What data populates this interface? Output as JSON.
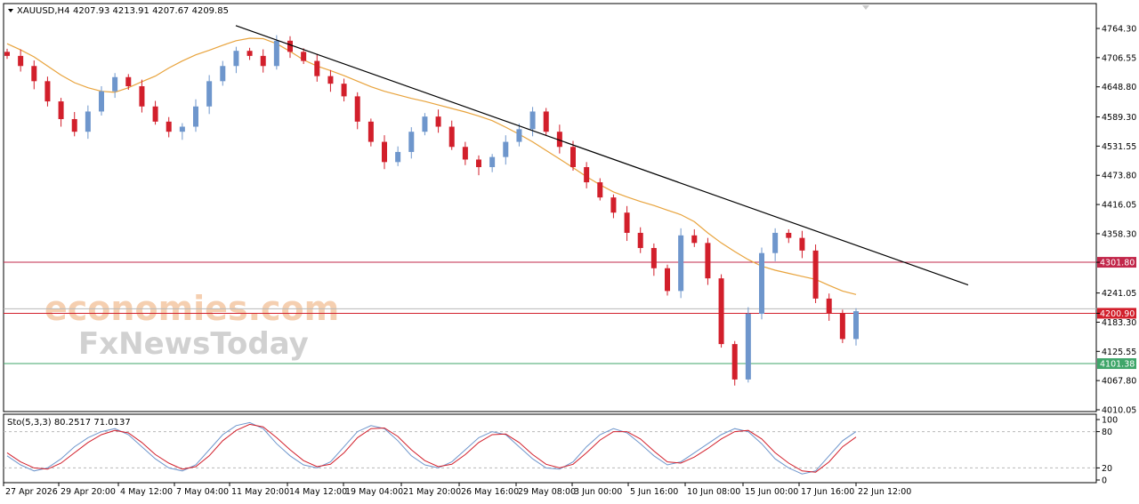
{
  "header": {
    "symbol_label": "XAUUSD,H4",
    "ohlc": "4207.93 4213.91 4207.67 4209.85",
    "dropdown_icon": "triangle-down-icon"
  },
  "watermark": {
    "line1": "economies.com",
    "line2": "FxNewsToday"
  },
  "chart_data": [
    {
      "type": "candlestick",
      "symbol": "XAUUSD",
      "timeframe": "H4",
      "y_ticks": [
        "4764.30",
        "4706.55",
        "4648.80",
        "4589.30",
        "4531.55",
        "4473.80",
        "4416.05",
        "4358.30",
        "4301.80",
        "4241.05",
        "4200.90",
        "4183.30",
        "4125.55",
        "4067.80",
        "4010.05"
      ],
      "ylim": [
        4010.05,
        4764.3
      ],
      "x_tick_labels": [
        "27 Apr 2026",
        "29 Apr 20:00",
        "4 May 12:00",
        "7 May 04:00",
        "11 May 20:00",
        "14 May 12:00",
        "19 May 04:00",
        "21 May 20:00",
        "26 May 16:00",
        "29 May 08:00",
        "3 Jun 00:00",
        "5 Jun 16:00",
        "10 Jun 08:00",
        "15 Jun 00:00",
        "17 Jun 16:00",
        "22 Jun 12:00"
      ],
      "colors": {
        "bull": "#6e96cc",
        "bear": "#d21f2b",
        "ma": "#e8a33c",
        "trendline": "#000000"
      },
      "horizontal_levels": [
        {
          "value": 4301.8,
          "label": "4301.80",
          "color": "#c2274a"
        },
        {
          "value": 4200.9,
          "label": "4200.90",
          "color": "#d21f2b"
        },
        {
          "value": 4101.38,
          "label": "4101.38",
          "color": "#3fa66a"
        }
      ],
      "trendline": {
        "start": 4770,
        "end": 4257
      },
      "moving_average_series": [
        4734,
        4722,
        4708,
        4690,
        4672,
        4657,
        4647,
        4640,
        4638,
        4647,
        4659,
        4670,
        4686,
        4700,
        4712,
        4721,
        4731,
        4740,
        4745,
        4744,
        4734,
        4719,
        4702,
        4690,
        4681,
        4671,
        4660,
        4649,
        4640,
        4633,
        4626,
        4620,
        4613,
        4606,
        4599,
        4591,
        4582,
        4569,
        4555,
        4540,
        4523,
        4506,
        4489,
        4471,
        4455,
        4441,
        4431,
        4422,
        4414,
        4405,
        4396,
        4382,
        4360,
        4340,
        4323,
        4307,
        4294,
        4286,
        4280,
        4274,
        4268,
        4256,
        4245,
        4238
      ],
      "close_series": [
        4710,
        4690,
        4660,
        4620,
        4585,
        4560,
        4600,
        4640,
        4668,
        4650,
        4610,
        4580,
        4560,
        4570,
        4610,
        4660,
        4690,
        4720,
        4710,
        4690,
        4740,
        4718,
        4700,
        4670,
        4655,
        4630,
        4580,
        4540,
        4500,
        4520,
        4560,
        4590,
        4570,
        4530,
        4505,
        4490,
        4510,
        4540,
        4565,
        4600,
        4560,
        4530,
        4490,
        4460,
        4430,
        4400,
        4360,
        4330,
        4290,
        4245,
        4355,
        4340,
        4270,
        4140,
        4070,
        4200,
        4320,
        4360,
        4350,
        4325,
        4230,
        4200,
        4150,
        4205
      ]
    },
    {
      "type": "line",
      "indicator_label": "Sto(5,3,3) 80.2517 71.0137",
      "y_ticks": [
        "100",
        "80",
        "20",
        "0"
      ],
      "ylim": [
        0,
        100
      ],
      "level_lines": [
        80,
        20
      ],
      "series": [
        {
          "color": "#6e96cc",
          "values": [
            40,
            25,
            15,
            20,
            35,
            55,
            70,
            80,
            85,
            75,
            55,
            35,
            20,
            15,
            25,
            50,
            75,
            90,
            95,
            85,
            60,
            40,
            25,
            20,
            30,
            55,
            80,
            90,
            85,
            65,
            40,
            25,
            20,
            30,
            50,
            70,
            80,
            75,
            55,
            35,
            20,
            18,
            30,
            55,
            75,
            85,
            78,
            60,
            40,
            25,
            30,
            45,
            60,
            75,
            85,
            80,
            60,
            35,
            20,
            10,
            15,
            40,
            65,
            80
          ]
        },
        {
          "color": "#d21f2b",
          "values": [
            45,
            30,
            20,
            18,
            28,
            45,
            62,
            75,
            82,
            78,
            62,
            42,
            28,
            18,
            22,
            40,
            65,
            82,
            92,
            88,
            70,
            50,
            32,
            22,
            26,
            45,
            70,
            85,
            86,
            72,
            50,
            32,
            22,
            26,
            42,
            62,
            75,
            76,
            62,
            42,
            26,
            20,
            26,
            45,
            66,
            80,
            80,
            68,
            48,
            30,
            28,
            38,
            52,
            68,
            80,
            82,
            68,
            45,
            28,
            15,
            13,
            30,
            55,
            71
          ]
        }
      ]
    }
  ]
}
